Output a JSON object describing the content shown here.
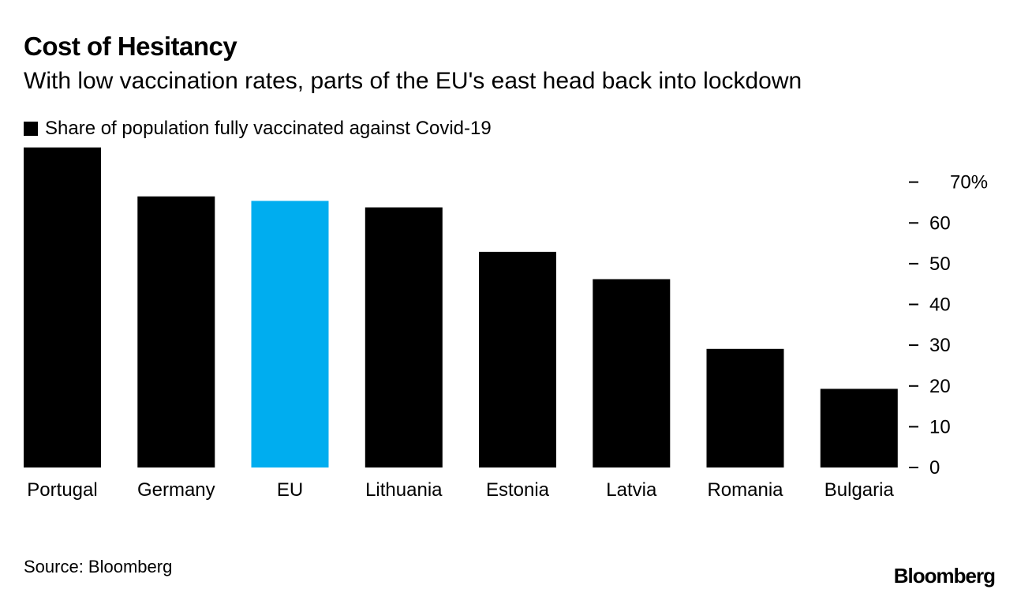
{
  "header": {
    "title": "Cost of Hesitancy",
    "subtitle": "With low vaccination rates, parts of the EU's east head back into lockdown"
  },
  "legend": {
    "label": "Share of population fully vaccinated against Covid-19",
    "color": "#000000"
  },
  "footer": {
    "source": "Source: Bloomberg",
    "brand": "Bloomberg"
  },
  "chart_data": {
    "type": "bar",
    "categories": [
      "Portugal",
      "Germany",
      "EU",
      "Lithuania",
      "Estonia",
      "Latvia",
      "Romania",
      "Bulgaria"
    ],
    "series": [
      {
        "name": "Share of population fully vaccinated against Covid-19",
        "values": [
          78.5,
          66.5,
          65.4,
          63.8,
          52.9,
          46.2,
          29.1,
          19.3
        ],
        "colors": [
          "#000000",
          "#000000",
          "#00adef",
          "#000000",
          "#000000",
          "#000000",
          "#000000",
          "#000000"
        ]
      }
    ],
    "ylim": [
      0,
      80
    ],
    "yticks": [
      0,
      10,
      20,
      30,
      40,
      50,
      60,
      70
    ],
    "ytick_labels": [
      "0",
      "10",
      "20",
      "30",
      "40",
      "50",
      "60",
      "70%"
    ],
    "y_axis_position": "right",
    "grid": false,
    "legend_position": "top-left"
  }
}
